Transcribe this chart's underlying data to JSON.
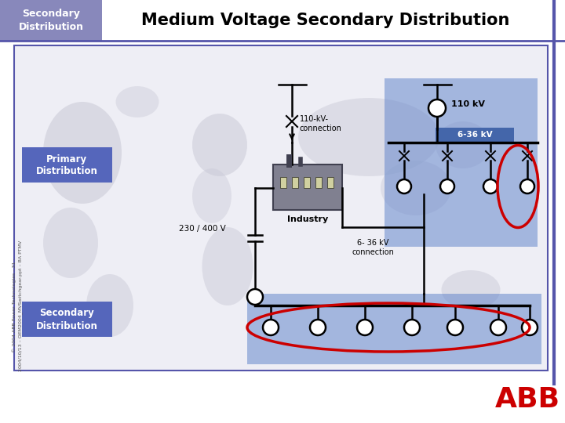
{
  "title_box_color": "#8888bb",
  "title_box_text": "Secondary\nDistribution",
  "title_box_text_color": "#ffffff",
  "title_text": "Medium Voltage Secondary Distribution",
  "title_text_color": "#000000",
  "main_bg": "#ffffff",
  "border_color": "#5555aa",
  "diagram_bg": "#eeeef5",
  "world_map_color": "#c8c8d5",
  "blue_region_color": "#6688cc",
  "primary_dist_label": "Primary\nDistribution",
  "secondary_dist_label": "Secondary\nDistribution",
  "label_box_color": "#5566bb",
  "label_text_color": "#ffffff",
  "annotation_110kv": "110 kV",
  "annotation_636kv_1": "6-36 kV",
  "annotation_636kv_2": "6- 36 kV\nconnection",
  "annotation_110kv_conn": "110-kV-\nconnection",
  "annotation_230400": "230 / 400 V",
  "annotation_industry": "Industry",
  "red_ellipse_color": "#cc0000",
  "line_color": "#000000",
  "circle_fill": "#ffffff",
  "circle_border": "#000000",
  "copyright_text": "© 2004 ABB Power Technologies - 31 -\n2004/10/13 – OEM2004_MVSwitchgear.ppt – BA PTMV",
  "abb_red": "#cc0000"
}
